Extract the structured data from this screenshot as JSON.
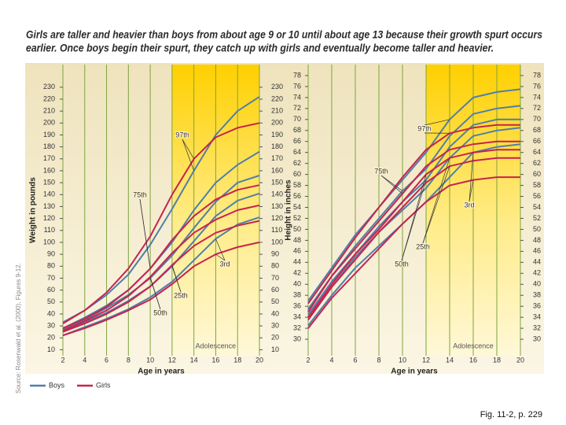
{
  "header": {
    "title_lines": [
      "Girls are taller and heavier than boys from about age 9 or 10 until about age 13 because their growth spurt occurs",
      "earlier. Once boys begin their spurt, they catch up with girls and eventually become taller and heavier."
    ]
  },
  "groups": [
    {
      "name": "Boys",
      "color": "#4f7fa8"
    },
    {
      "name": "Girls",
      "color": "#c8234e"
    }
  ],
  "source": "Source: Rosenwald et al. (2000), Figures 9-12.",
  "caption": "Fig. 11-2, p. 229",
  "chart_data": [
    {
      "type": "line",
      "x_label": "Age in years",
      "y_label": "Weight in pounds",
      "x": [
        2,
        4,
        6,
        8,
        10,
        12,
        14,
        16,
        18,
        20
      ],
      "xlim": [
        2,
        20
      ],
      "ylim": [
        5,
        249
      ],
      "xticks": [
        2,
        4,
        6,
        8,
        10,
        12,
        14,
        16,
        18,
        20
      ],
      "yticks": [
        10,
        20,
        30,
        40,
        50,
        60,
        70,
        80,
        90,
        100,
        110,
        120,
        130,
        140,
        150,
        160,
        170,
        180,
        190,
        200,
        210,
        220,
        230
      ],
      "grid": true,
      "band": {
        "label": "Adolescence",
        "from": 12
      },
      "percentiles": [
        "97th",
        "75th",
        "50th",
        "25th",
        "3rd"
      ],
      "values": [
        [
          [
            33,
            43,
            56,
            73,
            98,
            128,
            160,
            190,
            210,
            222
          ],
          [
            28,
            37,
            47,
            60,
            78,
            100,
            127,
            150,
            165,
            176
          ],
          [
            27,
            35,
            45,
            56,
            70,
            89,
            112,
            134,
            150,
            156
          ],
          [
            25,
            33,
            41,
            51,
            63,
            80,
            101,
            122,
            135,
            141
          ],
          [
            22,
            29,
            36,
            44,
            54,
            67,
            85,
            103,
            115,
            121
          ]
        ],
        [
          [
            32,
            43,
            58,
            78,
            105,
            140,
            170,
            188,
            196,
            200
          ],
          [
            28,
            36,
            46,
            60,
            78,
            102,
            122,
            136,
            144,
            148
          ],
          [
            26,
            34,
            43,
            55,
            71,
            91,
            108,
            119,
            127,
            131
          ],
          [
            25,
            32,
            40,
            50,
            63,
            81,
            97,
            108,
            114,
            118
          ],
          [
            22,
            28,
            35,
            43,
            52,
            65,
            80,
            90,
            96,
            100
          ]
        ]
      ]
    },
    {
      "type": "line",
      "x_label": "Age in years",
      "y_label": "Height in inches",
      "x": [
        2,
        4,
        6,
        8,
        10,
        12,
        14,
        16,
        18,
        20
      ],
      "xlim": [
        2,
        20
      ],
      "ylim": [
        27,
        80
      ],
      "xticks": [
        2,
        4,
        6,
        8,
        10,
        12,
        14,
        16,
        18,
        20
      ],
      "yticks": [
        30,
        32,
        34,
        36,
        38,
        40,
        42,
        44,
        46,
        48,
        50,
        52,
        54,
        56,
        58,
        60,
        62,
        64,
        66,
        68,
        70,
        72,
        74,
        76,
        78
      ],
      "grid": true,
      "band": {
        "label": "Adolescence",
        "from": 12
      },
      "percentiles": [
        "97th",
        "75th",
        "50th",
        "25th",
        "3rd"
      ],
      "values": [
        [
          [
            37,
            43,
            49,
            54,
            59,
            64,
            70,
            74,
            75,
            75.5
          ],
          [
            35.5,
            41.5,
            47,
            52,
            57,
            61,
            67,
            71,
            72,
            72.5
          ],
          [
            34.5,
            40.5,
            45.5,
            50.5,
            55,
            59,
            65,
            69,
            70,
            70
          ],
          [
            34,
            39.5,
            45,
            49.5,
            53.5,
            57.5,
            63,
            67,
            68,
            68.5
          ],
          [
            32.5,
            38,
            43,
            47,
            51,
            55,
            59.5,
            64,
            65,
            65.5
          ]
        ],
        [
          [
            36.5,
            42.5,
            48.5,
            54,
            59.5,
            64.5,
            67.5,
            68.5,
            69,
            69
          ],
          [
            35,
            41.5,
            46.5,
            51.5,
            56.5,
            61.5,
            64.5,
            65.5,
            66,
            66
          ],
          [
            34,
            40,
            45.5,
            50,
            55,
            60,
            63,
            64,
            64.5,
            64.5
          ],
          [
            33.5,
            39.5,
            44.5,
            49.5,
            54,
            58.5,
            61.5,
            62.5,
            63,
            63
          ],
          [
            32,
            37.5,
            42,
            46.5,
            51,
            55,
            58,
            59,
            59.5,
            59.5
          ]
        ]
      ]
    }
  ]
}
